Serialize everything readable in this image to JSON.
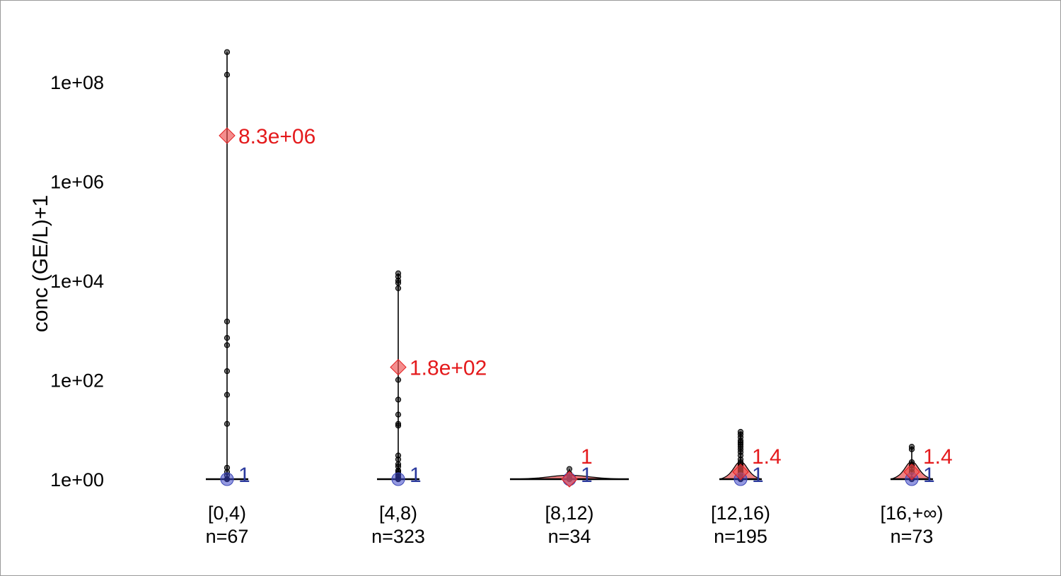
{
  "chart_data": {
    "type": "scatter",
    "ylabel": "conc (GE/L)+1",
    "yscale": "log10",
    "ylim": [
      1,
      1000000000
    ],
    "yticks": [
      {
        "value": 1,
        "label": "1e+00"
      },
      {
        "value": 100,
        "label": "1e+02"
      },
      {
        "value": 10000,
        "label": "1e+04"
      },
      {
        "value": 1000000,
        "label": "1e+06"
      },
      {
        "value": 100000000,
        "label": "1e+08"
      }
    ],
    "grid": false,
    "colors": {
      "mean": "#e41a1c",
      "median": "#2b3a9e",
      "points": "#000000",
      "baseline": "#000000"
    },
    "categories": [
      {
        "label": "[0,4)",
        "n_label": "n=67",
        "mean": 8300000,
        "mean_label": "8.3e+06",
        "median": 1,
        "median_label": "1",
        "points": [
          400000000,
          140000000,
          1500,
          700,
          500,
          150,
          50,
          13,
          1.7,
          1.4,
          1.2,
          1,
          1,
          1
        ],
        "violin_halfwidth": 0.5,
        "violin_height_decades": 0
      },
      {
        "label": "[4,8)",
        "n_label": "n=323",
        "mean": 180,
        "mean_label": "1.8e+02",
        "median": 1,
        "median_label": "1",
        "points": [
          14000,
          12000,
          10000,
          9000,
          7000,
          100,
          40,
          20,
          13,
          12,
          3,
          2.5,
          2,
          1.8,
          1.5,
          1.4,
          1.3,
          1.2,
          1.1,
          1,
          1,
          1
        ],
        "violin_halfwidth": 0.5,
        "violin_height_decades": 0
      },
      {
        "label": "[8,12)",
        "n_label": "n=34",
        "mean": 1,
        "mean_label": "1",
        "median": 1,
        "median_label": "1",
        "points": [
          1.6,
          1.3,
          1.1,
          1,
          1
        ],
        "violin_halfwidth": 1.4,
        "violin_height_decades": 0.08
      },
      {
        "label": "[12,16)",
        "n_label": "n=195",
        "mean": 1.4,
        "mean_label": "1.4",
        "median": 1,
        "median_label": "1",
        "points": [
          9,
          8,
          7,
          6,
          5.5,
          5,
          4.5,
          4,
          3.5,
          3,
          2.5,
          2.2,
          2,
          1.8,
          1.6,
          1.5,
          1.4,
          1.3,
          1.2,
          1.1,
          1,
          1,
          1
        ],
        "violin_halfwidth": 0.5,
        "violin_height_decades": 0.35
      },
      {
        "label": "[16,+∞)",
        "n_label": "n=73",
        "mean": 1.4,
        "mean_label": "1.4",
        "median": 1,
        "median_label": "1",
        "points": [
          4.5,
          4,
          2.2,
          1.9,
          1.6,
          1.4,
          1,
          1
        ],
        "violin_halfwidth": 0.5,
        "violin_height_decades": 0.35
      }
    ]
  }
}
